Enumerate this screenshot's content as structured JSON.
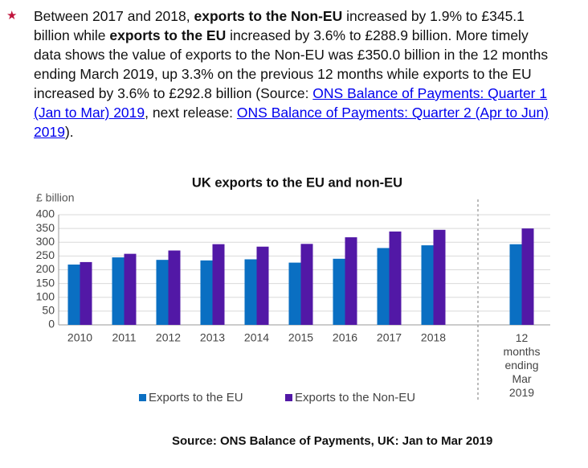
{
  "bullet": {
    "marker": "★",
    "segments": [
      {
        "text": "Between 2017 and 2018, ",
        "style": "plain"
      },
      {
        "text": "exports to the Non-EU",
        "style": "bold"
      },
      {
        "text": " increased by 1.9% to £345.1 billion while ",
        "style": "plain"
      },
      {
        "text": "exports to the EU",
        "style": "bold"
      },
      {
        "text": " increased by 3.6% to £288.9 billion. More timely data shows the value of exports to the Non-EU was £350.0 billion in the 12 months ending March 2019, up 3.3% on the previous 12 months while exports to the EU increased by 3.6% to £292.8 billion (Source: ",
        "style": "plain"
      },
      {
        "text": "ONS Balance of Payments: Quarter 1 (Jan to Mar) 2019",
        "style": "link"
      },
      {
        "text": ", next release: ",
        "style": "plain"
      },
      {
        "text": "ONS Balance of Payments: Quarter 2 (Apr to Jun) 2019",
        "style": "link"
      },
      {
        "text": ").",
        "style": "plain"
      }
    ]
  },
  "chart_data": {
    "type": "bar",
    "title": "UK exports to the EU and non-EU",
    "y_label": "£ billion",
    "categories": [
      "2010",
      "2011",
      "2012",
      "2013",
      "2014",
      "2015",
      "2016",
      "2017",
      "2018",
      "12 months ending Mar 2019"
    ],
    "series": [
      {
        "name": "Exports to the EU",
        "color": "#0a6fc2",
        "values": [
          219,
          245,
          236,
          234,
          238,
          226,
          240,
          279,
          288.9,
          292.8
        ]
      },
      {
        "name": "Exports to the Non-EU",
        "color": "#5218a6",
        "values": [
          228,
          258,
          270,
          293,
          284,
          294,
          318,
          339,
          345.1,
          350.0
        ]
      }
    ],
    "ylim": [
      0,
      400
    ],
    "yticks": [
      0,
      50,
      100,
      150,
      200,
      250,
      300,
      350,
      400
    ],
    "grid": true,
    "legend": "bottom",
    "source": "Source: ONS Balance of Payments, UK: Jan to Mar 2019"
  }
}
